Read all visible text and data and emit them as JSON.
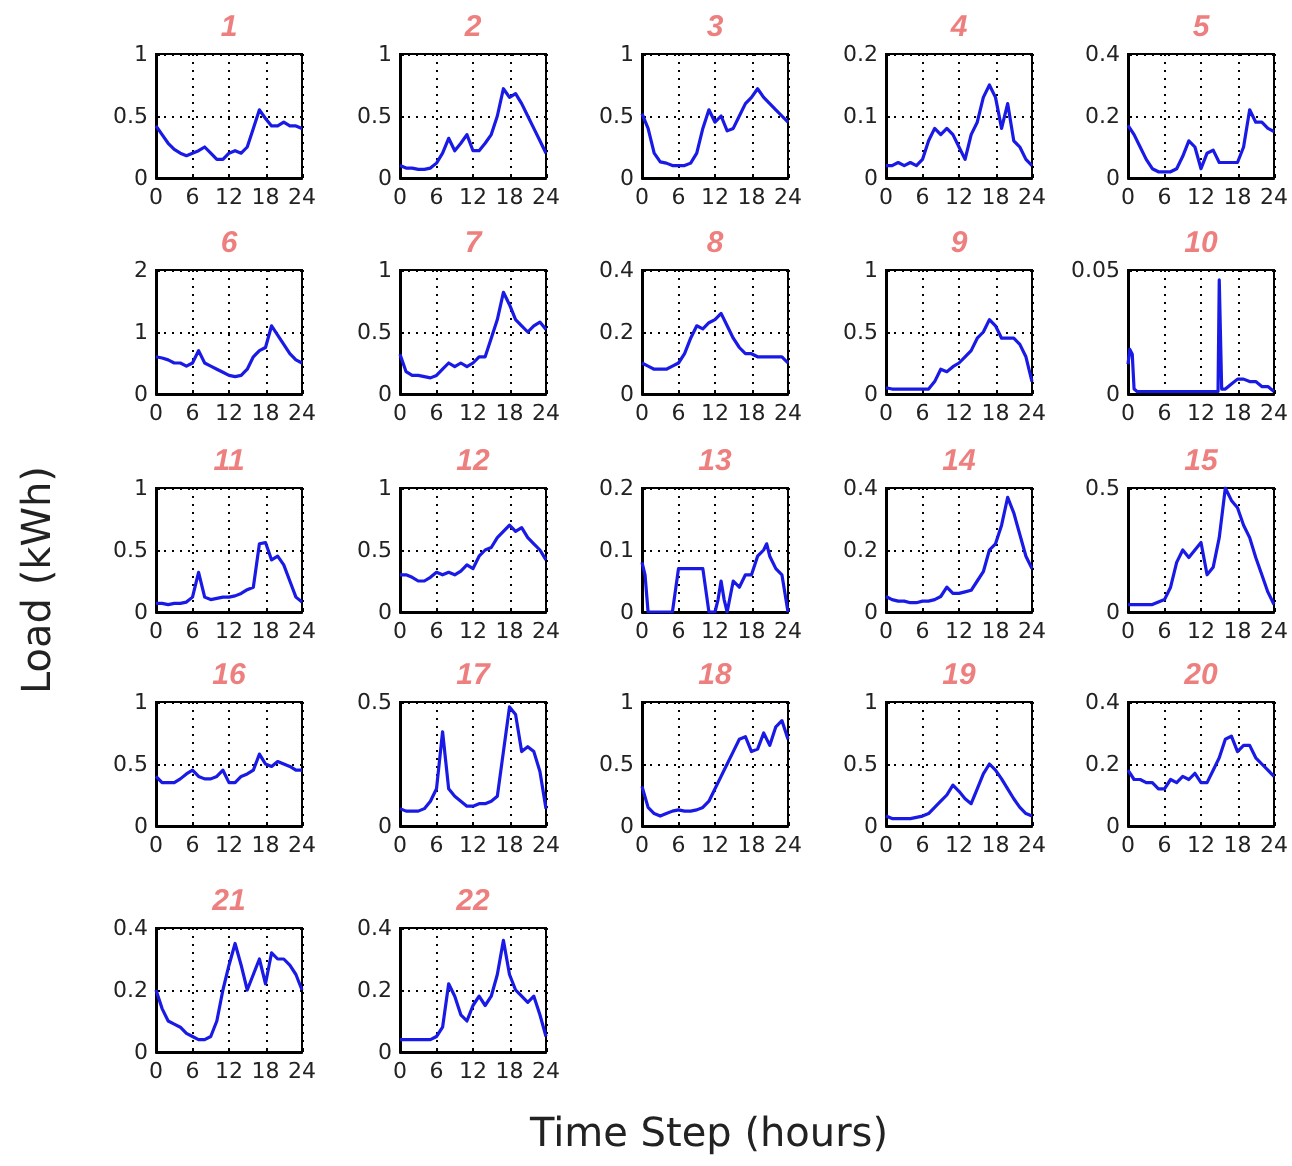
{
  "chart_data": [
    {
      "type": "line",
      "annotations": [
        "1"
      ],
      "x": [
        0,
        1,
        2,
        3,
        4,
        5,
        6,
        7,
        8,
        9,
        10,
        11,
        12,
        13,
        14,
        15,
        16,
        17,
        18,
        19,
        20,
        21,
        22,
        23,
        24
      ],
      "values": [
        0.42,
        0.35,
        0.28,
        0.23,
        0.2,
        0.18,
        0.2,
        0.22,
        0.25,
        0.2,
        0.15,
        0.15,
        0.2,
        0.22,
        0.2,
        0.25,
        0.4,
        0.55,
        0.48,
        0.42,
        0.42,
        0.45,
        0.42,
        0.42,
        0.4
      ],
      "color": "#1a1ae6",
      "xlim": [
        0,
        24
      ],
      "xticks": [
        0,
        6,
        12,
        18,
        24
      ],
      "ylim": [
        0,
        1
      ],
      "yticks": [
        0,
        0.5,
        1
      ],
      "grid": true
    },
    {
      "type": "line",
      "annotations": [
        "2"
      ],
      "x": [
        0,
        1,
        2,
        3,
        4,
        5,
        6,
        7,
        8,
        9,
        10,
        11,
        12,
        13,
        14,
        15,
        16,
        17,
        18,
        19,
        20,
        21,
        22,
        23,
        24
      ],
      "values": [
        0.1,
        0.08,
        0.08,
        0.07,
        0.07,
        0.08,
        0.12,
        0.2,
        0.32,
        0.22,
        0.28,
        0.35,
        0.22,
        0.22,
        0.28,
        0.35,
        0.5,
        0.72,
        0.65,
        0.68,
        0.6,
        0.5,
        0.4,
        0.3,
        0.2
      ],
      "color": "#1a1ae6",
      "xlim": [
        0,
        24
      ],
      "xticks": [
        0,
        6,
        12,
        18,
        24
      ],
      "ylim": [
        0,
        1
      ],
      "yticks": [
        0,
        0.5,
        1
      ],
      "grid": true
    },
    {
      "type": "line",
      "annotations": [
        "3"
      ],
      "x": [
        0,
        1,
        2,
        3,
        4,
        5,
        6,
        7,
        8,
        9,
        10,
        11,
        12,
        13,
        14,
        15,
        16,
        17,
        18,
        19,
        20,
        21,
        22,
        23,
        24
      ],
      "values": [
        0.52,
        0.4,
        0.2,
        0.13,
        0.12,
        0.1,
        0.1,
        0.1,
        0.12,
        0.2,
        0.4,
        0.55,
        0.45,
        0.5,
        0.38,
        0.4,
        0.5,
        0.6,
        0.65,
        0.72,
        0.65,
        0.6,
        0.55,
        0.5,
        0.45
      ],
      "color": "#1a1ae6",
      "xlim": [
        0,
        24
      ],
      "xticks": [
        0,
        6,
        12,
        18,
        24
      ],
      "ylim": [
        0,
        1
      ],
      "yticks": [
        0,
        0.5,
        1
      ],
      "grid": true
    },
    {
      "type": "line",
      "annotations": [
        "4"
      ],
      "x": [
        0,
        1,
        2,
        3,
        4,
        5,
        6,
        7,
        8,
        9,
        10,
        11,
        12,
        13,
        14,
        15,
        16,
        17,
        18,
        19,
        20,
        21,
        22,
        23,
        24
      ],
      "values": [
        0.02,
        0.02,
        0.025,
        0.02,
        0.025,
        0.02,
        0.03,
        0.06,
        0.08,
        0.07,
        0.08,
        0.07,
        0.05,
        0.03,
        0.07,
        0.09,
        0.13,
        0.15,
        0.13,
        0.08,
        0.12,
        0.06,
        0.05,
        0.03,
        0.02
      ],
      "color": "#1a1ae6",
      "xlim": [
        0,
        24
      ],
      "xticks": [
        0,
        6,
        12,
        18,
        24
      ],
      "ylim": [
        0,
        0.2
      ],
      "yticks": [
        0,
        0.1,
        0.2
      ],
      "grid": true
    },
    {
      "type": "line",
      "annotations": [
        "5"
      ],
      "x": [
        0,
        1,
        2,
        3,
        4,
        5,
        6,
        7,
        8,
        9,
        10,
        11,
        12,
        13,
        14,
        15,
        16,
        17,
        18,
        19,
        20,
        21,
        22,
        23,
        24
      ],
      "values": [
        0.17,
        0.14,
        0.1,
        0.06,
        0.03,
        0.02,
        0.02,
        0.02,
        0.03,
        0.07,
        0.12,
        0.1,
        0.03,
        0.08,
        0.09,
        0.05,
        0.05,
        0.05,
        0.05,
        0.1,
        0.22,
        0.18,
        0.18,
        0.16,
        0.15
      ],
      "color": "#1a1ae6",
      "xlim": [
        0,
        24
      ],
      "xticks": [
        0,
        6,
        12,
        18,
        24
      ],
      "ylim": [
        0,
        0.4
      ],
      "yticks": [
        0,
        0.2,
        0.4
      ],
      "grid": true
    },
    {
      "type": "line",
      "annotations": [
        "6"
      ],
      "x": [
        0,
        1,
        2,
        3,
        4,
        5,
        6,
        7,
        8,
        9,
        10,
        11,
        12,
        13,
        14,
        15,
        16,
        17,
        18,
        19,
        20,
        21,
        22,
        23,
        24
      ],
      "values": [
        0.6,
        0.58,
        0.55,
        0.5,
        0.5,
        0.45,
        0.5,
        0.7,
        0.5,
        0.45,
        0.4,
        0.35,
        0.3,
        0.28,
        0.3,
        0.4,
        0.6,
        0.7,
        0.75,
        1.1,
        0.95,
        0.8,
        0.65,
        0.55,
        0.5
      ],
      "color": "#1a1ae6",
      "xlim": [
        0,
        24
      ],
      "xticks": [
        0,
        6,
        12,
        18,
        24
      ],
      "ylim": [
        0,
        2
      ],
      "yticks": [
        0,
        1,
        2
      ],
      "grid": true
    },
    {
      "type": "line",
      "annotations": [
        "7"
      ],
      "x": [
        0,
        1,
        2,
        3,
        4,
        5,
        6,
        7,
        8,
        9,
        10,
        11,
        12,
        13,
        14,
        15,
        16,
        17,
        18,
        19,
        20,
        21,
        22,
        23,
        24
      ],
      "values": [
        0.32,
        0.18,
        0.15,
        0.15,
        0.14,
        0.13,
        0.15,
        0.2,
        0.25,
        0.22,
        0.25,
        0.22,
        0.25,
        0.3,
        0.3,
        0.45,
        0.6,
        0.82,
        0.72,
        0.6,
        0.55,
        0.5,
        0.55,
        0.58,
        0.52
      ],
      "color": "#1a1ae6",
      "xlim": [
        0,
        24
      ],
      "xticks": [
        0,
        6,
        12,
        18,
        24
      ],
      "ylim": [
        0,
        1
      ],
      "yticks": [
        0,
        0.5,
        1
      ],
      "grid": true
    },
    {
      "type": "line",
      "annotations": [
        "8"
      ],
      "x": [
        0,
        1,
        2,
        3,
        4,
        5,
        6,
        7,
        8,
        9,
        10,
        11,
        12,
        13,
        14,
        15,
        16,
        17,
        18,
        19,
        20,
        21,
        22,
        23,
        24
      ],
      "values": [
        0.1,
        0.09,
        0.08,
        0.08,
        0.08,
        0.09,
        0.1,
        0.13,
        0.18,
        0.22,
        0.21,
        0.23,
        0.24,
        0.26,
        0.22,
        0.18,
        0.15,
        0.13,
        0.13,
        0.12,
        0.12,
        0.12,
        0.12,
        0.12,
        0.1
      ],
      "color": "#1a1ae6",
      "xlim": [
        0,
        24
      ],
      "xticks": [
        0,
        6,
        12,
        18,
        24
      ],
      "ylim": [
        0,
        0.4
      ],
      "yticks": [
        0,
        0.2,
        0.4
      ],
      "grid": true
    },
    {
      "type": "line",
      "annotations": [
        "9"
      ],
      "x": [
        0,
        1,
        2,
        3,
        4,
        5,
        6,
        7,
        8,
        9,
        10,
        11,
        12,
        13,
        14,
        15,
        16,
        17,
        18,
        19,
        20,
        21,
        22,
        23,
        24
      ],
      "values": [
        0.05,
        0.04,
        0.04,
        0.04,
        0.04,
        0.04,
        0.04,
        0.04,
        0.1,
        0.2,
        0.18,
        0.22,
        0.25,
        0.3,
        0.35,
        0.45,
        0.5,
        0.6,
        0.55,
        0.45,
        0.45,
        0.45,
        0.4,
        0.3,
        0.1
      ],
      "color": "#1a1ae6",
      "xlim": [
        0,
        24
      ],
      "xticks": [
        0,
        6,
        12,
        18,
        24
      ],
      "ylim": [
        0,
        1
      ],
      "yticks": [
        0,
        0.5,
        1
      ],
      "grid": true
    },
    {
      "type": "line",
      "annotations": [
        "10"
      ],
      "x": [
        0,
        0.3,
        0.7,
        1,
        1.5,
        4,
        8,
        12,
        14.8,
        15,
        15.2,
        15.4,
        16,
        17,
        18,
        19,
        20,
        21,
        22,
        23,
        24
      ],
      "values": [
        0.012,
        0.018,
        0.016,
        0.002,
        0.001,
        0.001,
        0.001,
        0.001,
        0.001,
        0.046,
        0.046,
        0.002,
        0.002,
        0.004,
        0.006,
        0.006,
        0.005,
        0.005,
        0.003,
        0.003,
        0.001
      ],
      "color": "#1a1ae6",
      "xlim": [
        0,
        24
      ],
      "xticks": [
        0,
        6,
        12,
        18,
        24
      ],
      "ylim": [
        0,
        0.05
      ],
      "yticks": [
        0,
        0.05
      ],
      "grid": true
    },
    {
      "type": "line",
      "ylabel": "Load (kWh)",
      "annotations": [
        "11"
      ],
      "x": [
        0,
        1,
        2,
        3,
        4,
        5,
        6,
        7,
        8,
        9,
        10,
        11,
        12,
        13,
        14,
        15,
        16,
        17,
        18,
        19,
        20,
        21,
        22,
        23,
        24
      ],
      "values": [
        0.07,
        0.07,
        0.06,
        0.07,
        0.07,
        0.08,
        0.12,
        0.32,
        0.12,
        0.1,
        0.11,
        0.12,
        0.12,
        0.13,
        0.15,
        0.18,
        0.2,
        0.55,
        0.56,
        0.42,
        0.45,
        0.38,
        0.25,
        0.12,
        0.08
      ],
      "color": "#1a1ae6",
      "xlim": [
        0,
        24
      ],
      "xticks": [
        0,
        6,
        12,
        18,
        24
      ],
      "ylim": [
        0,
        1
      ],
      "yticks": [
        0,
        0.5,
        1
      ],
      "grid": true
    },
    {
      "type": "line",
      "annotations": [
        "12"
      ],
      "x": [
        0,
        1,
        2,
        3,
        4,
        5,
        6,
        7,
        8,
        9,
        10,
        11,
        12,
        13,
        14,
        15,
        16,
        17,
        18,
        19,
        20,
        21,
        22,
        23,
        24
      ],
      "values": [
        0.3,
        0.3,
        0.28,
        0.25,
        0.25,
        0.28,
        0.32,
        0.3,
        0.32,
        0.3,
        0.33,
        0.38,
        0.35,
        0.45,
        0.5,
        0.52,
        0.6,
        0.65,
        0.7,
        0.65,
        0.68,
        0.6,
        0.55,
        0.5,
        0.42
      ],
      "color": "#1a1ae6",
      "xlim": [
        0,
        24
      ],
      "xticks": [
        0,
        6,
        12,
        18,
        24
      ],
      "ylim": [
        0,
        1
      ],
      "yticks": [
        0,
        0.5,
        1
      ],
      "grid": true
    },
    {
      "type": "line",
      "annotations": [
        "13"
      ],
      "x": [
        0,
        0.5,
        1,
        2,
        3,
        4,
        5,
        6,
        7,
        8,
        9,
        10,
        11,
        12,
        12.5,
        13,
        13.5,
        14,
        15,
        16,
        17,
        18,
        19,
        20,
        20.5,
        21,
        22,
        23,
        24
      ],
      "values": [
        0.08,
        0.06,
        0,
        0,
        0,
        0,
        0,
        0.07,
        0.07,
        0.07,
        0.07,
        0.07,
        0,
        0,
        0.02,
        0.05,
        0.02,
        0,
        0.05,
        0.04,
        0.06,
        0.06,
        0.09,
        0.1,
        0.11,
        0.09,
        0.07,
        0.06,
        0
      ],
      "color": "#1a1ae6",
      "xlim": [
        0,
        24
      ],
      "xticks": [
        0,
        6,
        12,
        18,
        24
      ],
      "ylim": [
        0,
        0.2
      ],
      "yticks": [
        0,
        0.1,
        0.2
      ],
      "grid": true
    },
    {
      "type": "line",
      "annotations": [
        "14"
      ],
      "x": [
        0,
        1,
        2,
        3,
        4,
        5,
        6,
        7,
        8,
        9,
        10,
        11,
        12,
        13,
        14,
        15,
        16,
        17,
        18,
        19,
        20,
        21,
        22,
        23,
        24
      ],
      "values": [
        0.05,
        0.04,
        0.035,
        0.035,
        0.03,
        0.03,
        0.035,
        0.035,
        0.04,
        0.05,
        0.08,
        0.06,
        0.06,
        0.065,
        0.07,
        0.1,
        0.13,
        0.2,
        0.22,
        0.28,
        0.37,
        0.32,
        0.25,
        0.18,
        0.14
      ],
      "color": "#1a1ae6",
      "xlim": [
        0,
        24
      ],
      "xticks": [
        0,
        6,
        12,
        18,
        24
      ],
      "ylim": [
        0,
        0.4
      ],
      "yticks": [
        0,
        0.2,
        0.4
      ],
      "grid": true
    },
    {
      "type": "line",
      "annotations": [
        "15"
      ],
      "x": [
        0,
        1,
        2,
        3,
        4,
        5,
        6,
        7,
        8,
        9,
        10,
        11,
        12,
        13,
        14,
        15,
        16,
        17,
        18,
        19,
        20,
        21,
        22,
        23,
        24
      ],
      "values": [
        0.03,
        0.03,
        0.03,
        0.03,
        0.03,
        0.04,
        0.05,
        0.1,
        0.2,
        0.25,
        0.22,
        0.25,
        0.28,
        0.15,
        0.18,
        0.3,
        0.5,
        0.45,
        0.42,
        0.35,
        0.3,
        0.22,
        0.15,
        0.08,
        0.03
      ],
      "color": "#1a1ae6",
      "xlim": [
        0,
        24
      ],
      "xticks": [
        0,
        6,
        12,
        18,
        24
      ],
      "ylim": [
        0,
        0.5
      ],
      "yticks": [
        0,
        0.5
      ],
      "grid": true
    },
    {
      "type": "line",
      "annotations": [
        "16"
      ],
      "x": [
        0,
        1,
        2,
        3,
        4,
        5,
        6,
        7,
        8,
        9,
        10,
        11,
        12,
        13,
        14,
        15,
        16,
        17,
        18,
        19,
        20,
        21,
        22,
        23,
        24
      ],
      "values": [
        0.4,
        0.35,
        0.35,
        0.35,
        0.38,
        0.42,
        0.45,
        0.4,
        0.38,
        0.38,
        0.4,
        0.45,
        0.35,
        0.35,
        0.4,
        0.42,
        0.45,
        0.58,
        0.5,
        0.48,
        0.52,
        0.5,
        0.48,
        0.45,
        0.45
      ],
      "color": "#1a1ae6",
      "xlim": [
        0,
        24
      ],
      "xticks": [
        0,
        6,
        12,
        18,
        24
      ],
      "ylim": [
        0,
        1
      ],
      "yticks": [
        0,
        0.5,
        1
      ],
      "grid": true
    },
    {
      "type": "line",
      "annotations": [
        "17"
      ],
      "x": [
        0,
        1,
        2,
        3,
        4,
        5,
        6,
        7,
        8,
        9,
        10,
        11,
        12,
        13,
        14,
        15,
        16,
        17,
        18,
        19,
        20,
        21,
        22,
        23,
        24
      ],
      "values": [
        0.07,
        0.06,
        0.06,
        0.06,
        0.07,
        0.1,
        0.15,
        0.38,
        0.15,
        0.12,
        0.1,
        0.08,
        0.08,
        0.09,
        0.09,
        0.1,
        0.12,
        0.3,
        0.48,
        0.45,
        0.3,
        0.32,
        0.3,
        0.22,
        0.07
      ],
      "color": "#1a1ae6",
      "xlim": [
        0,
        24
      ],
      "xticks": [
        0,
        6,
        12,
        18,
        24
      ],
      "ylim": [
        0,
        0.5
      ],
      "yticks": [
        0,
        0.5
      ],
      "grid": true
    },
    {
      "type": "line",
      "xlabel": "Time Step (hours)",
      "annotations": [
        "18"
      ],
      "x": [
        0,
        1,
        2,
        3,
        4,
        5,
        6,
        7,
        8,
        9,
        10,
        11,
        12,
        13,
        14,
        15,
        16,
        17,
        18,
        19,
        20,
        21,
        22,
        23,
        24
      ],
      "values": [
        0.32,
        0.15,
        0.1,
        0.08,
        0.1,
        0.12,
        0.13,
        0.12,
        0.12,
        0.13,
        0.15,
        0.2,
        0.3,
        0.4,
        0.5,
        0.6,
        0.7,
        0.72,
        0.6,
        0.62,
        0.75,
        0.65,
        0.8,
        0.85,
        0.7
      ],
      "color": "#1a1ae6",
      "xlim": [
        0,
        24
      ],
      "xticks": [
        0,
        6,
        12,
        18,
        24
      ],
      "ylim": [
        0,
        1
      ],
      "yticks": [
        0,
        0.5,
        1
      ],
      "grid": true
    },
    {
      "type": "line",
      "annotations": [
        "19"
      ],
      "x": [
        0,
        1,
        2,
        3,
        4,
        5,
        6,
        7,
        8,
        9,
        10,
        11,
        12,
        13,
        14,
        15,
        16,
        17,
        18,
        19,
        20,
        21,
        22,
        23,
        24
      ],
      "values": [
        0.08,
        0.06,
        0.06,
        0.06,
        0.06,
        0.07,
        0.08,
        0.1,
        0.15,
        0.2,
        0.25,
        0.33,
        0.28,
        0.22,
        0.18,
        0.3,
        0.42,
        0.5,
        0.45,
        0.38,
        0.3,
        0.22,
        0.15,
        0.1,
        0.08
      ],
      "color": "#1a1ae6",
      "xlim": [
        0,
        24
      ],
      "xticks": [
        0,
        6,
        12,
        18,
        24
      ],
      "ylim": [
        0,
        1
      ],
      "yticks": [
        0,
        0.5,
        1
      ],
      "grid": true
    },
    {
      "type": "line",
      "annotations": [
        "20"
      ],
      "x": [
        0,
        1,
        2,
        3,
        4,
        5,
        6,
        7,
        8,
        9,
        10,
        11,
        12,
        13,
        14,
        15,
        16,
        17,
        18,
        19,
        20,
        21,
        22,
        23,
        24
      ],
      "values": [
        0.18,
        0.15,
        0.15,
        0.14,
        0.14,
        0.12,
        0.12,
        0.15,
        0.14,
        0.16,
        0.15,
        0.17,
        0.14,
        0.14,
        0.18,
        0.22,
        0.28,
        0.29,
        0.24,
        0.26,
        0.26,
        0.22,
        0.2,
        0.18,
        0.16
      ],
      "color": "#1a1ae6",
      "xlim": [
        0,
        24
      ],
      "xticks": [
        0,
        6,
        12,
        18,
        24
      ],
      "ylim": [
        0,
        0.4
      ],
      "yticks": [
        0,
        0.2,
        0.4
      ],
      "grid": true
    },
    {
      "type": "line",
      "annotations": [
        "21"
      ],
      "x": [
        0,
        1,
        2,
        3,
        4,
        5,
        6,
        7,
        8,
        9,
        10,
        11,
        12,
        13,
        14,
        15,
        16,
        17,
        18,
        19,
        20,
        21,
        22,
        23,
        24
      ],
      "values": [
        0.2,
        0.14,
        0.1,
        0.09,
        0.08,
        0.06,
        0.05,
        0.04,
        0.04,
        0.05,
        0.1,
        0.2,
        0.28,
        0.35,
        0.28,
        0.2,
        0.25,
        0.3,
        0.22,
        0.32,
        0.3,
        0.3,
        0.28,
        0.25,
        0.2
      ],
      "color": "#1a1ae6",
      "xlim": [
        0,
        24
      ],
      "xticks": [
        0,
        6,
        12,
        18,
        24
      ],
      "ylim": [
        0,
        0.4
      ],
      "yticks": [
        0,
        0.2,
        0.4
      ],
      "grid": true
    },
    {
      "type": "line",
      "annotations": [
        "22"
      ],
      "x": [
        0,
        1,
        2,
        3,
        4,
        5,
        6,
        7,
        8,
        9,
        10,
        11,
        12,
        13,
        14,
        15,
        16,
        17,
        18,
        19,
        20,
        21,
        22,
        23,
        24
      ],
      "values": [
        0.04,
        0.04,
        0.04,
        0.04,
        0.04,
        0.04,
        0.05,
        0.08,
        0.22,
        0.18,
        0.12,
        0.1,
        0.15,
        0.18,
        0.15,
        0.18,
        0.25,
        0.36,
        0.25,
        0.2,
        0.18,
        0.16,
        0.18,
        0.12,
        0.05
      ],
      "color": "#1a1ae6",
      "xlim": [
        0,
        24
      ],
      "xticks": [
        0,
        6,
        12,
        18,
        24
      ],
      "ylim": [
        0,
        0.4
      ],
      "yticks": [
        0,
        0.2,
        0.4
      ],
      "grid": true
    }
  ]
}
